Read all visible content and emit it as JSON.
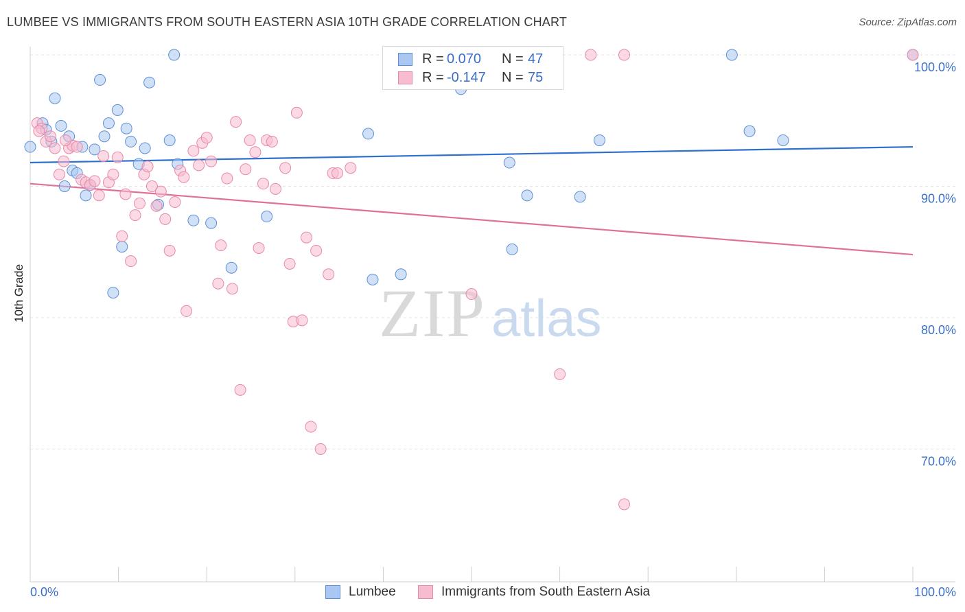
{
  "title": "LUMBEE VS IMMIGRANTS FROM SOUTH EASTERN ASIA 10TH GRADE CORRELATION CHART",
  "source": "Source: ZipAtlas.com",
  "watermark": {
    "zip": "ZIP",
    "atlas": "atlas"
  },
  "legend": {
    "r_label": "R =",
    "n_label": "N =",
    "rows": [
      {
        "r": "0.070",
        "n": "47",
        "color": "#a9c7f0",
        "stroke": "#5b8fd6"
      },
      {
        "r": "-0.147",
        "n": "75",
        "color": "#f7bcd0",
        "stroke": "#e888a8"
      }
    ]
  },
  "bottom_legend": [
    "Lumbee",
    "Immigrants from South Eastern Asia"
  ],
  "chart_data": {
    "type": "scatter",
    "title": "LUMBEE VS IMMIGRANTS FROM SOUTH EASTERN ASIA 10TH GRADE CORRELATION CHART",
    "xlabel": "",
    "ylabel": "10th Grade",
    "xlim": [
      0,
      100
    ],
    "ylim": [
      60,
      100
    ],
    "x_tick_labels": [
      "0.0%",
      "100.0%"
    ],
    "y_ticks": [
      70,
      80,
      90,
      100
    ],
    "y_tick_labels": [
      "70.0%",
      "80.0%",
      "90.0%",
      "100.0%"
    ],
    "grid": true,
    "colors": {
      "blue_fill": "#a9c7f0",
      "blue_stroke": "#5b8fd6",
      "blue_line": "#2f6fcf",
      "pink_fill": "#f7bcd0",
      "pink_stroke": "#e888a8",
      "pink_line": "#e0709a",
      "tick_label": "#3a6fc8"
    },
    "series": [
      {
        "name": "Lumbee",
        "trend": [
          [
            0,
            91.8
          ],
          [
            100,
            93.0
          ]
        ],
        "points": [
          [
            0,
            93.0
          ],
          [
            1.4,
            94.8
          ],
          [
            1.8,
            94.3
          ],
          [
            2.4,
            93.4
          ],
          [
            2.8,
            96.7
          ],
          [
            3.5,
            94.6
          ],
          [
            3.9,
            90.0
          ],
          [
            4.4,
            93.8
          ],
          [
            4.8,
            91.2
          ],
          [
            5.3,
            91.0
          ],
          [
            5.9,
            93.0
          ],
          [
            6.3,
            89.3
          ],
          [
            6.8,
            90.1
          ],
          [
            7.3,
            92.8
          ],
          [
            7.9,
            98.1
          ],
          [
            8.4,
            93.8
          ],
          [
            8.9,
            94.8
          ],
          [
            9.4,
            81.9
          ],
          [
            9.9,
            95.8
          ],
          [
            10.4,
            85.4
          ],
          [
            10.9,
            94.4
          ],
          [
            11.4,
            93.4
          ],
          [
            12.3,
            91.7
          ],
          [
            13.0,
            92.9
          ],
          [
            13.5,
            97.9
          ],
          [
            14.5,
            88.6
          ],
          [
            15.8,
            93.5
          ],
          [
            16.3,
            100.0
          ],
          [
            16.7,
            91.7
          ],
          [
            18.5,
            87.4
          ],
          [
            20.5,
            87.2
          ],
          [
            22.8,
            83.8
          ],
          [
            26.8,
            87.7
          ],
          [
            38.3,
            94.0
          ],
          [
            38.8,
            82.9
          ],
          [
            42.0,
            83.3
          ],
          [
            48.8,
            97.4
          ],
          [
            54.3,
            91.8
          ],
          [
            54.6,
            85.2
          ],
          [
            56.3,
            89.3
          ],
          [
            62.3,
            89.2
          ],
          [
            64.5,
            93.5
          ],
          [
            79.5,
            100.0
          ],
          [
            81.5,
            94.2
          ],
          [
            85.3,
            93.5
          ],
          [
            100.0,
            100.0
          ],
          [
            45.5,
            100.0
          ]
        ]
      },
      {
        "name": "Immigrants from South Eastern Asia",
        "trend": [
          [
            0,
            90.2
          ],
          [
            100,
            84.8
          ]
        ],
        "points": [
          [
            0.8,
            94.8
          ],
          [
            1.3,
            94.4
          ],
          [
            1.8,
            93.4
          ],
          [
            2.3,
            93.8
          ],
          [
            2.8,
            92.9
          ],
          [
            3.3,
            90.9
          ],
          [
            3.8,
            91.9
          ],
          [
            4.4,
            92.9
          ],
          [
            4.8,
            93.1
          ],
          [
            5.3,
            93.0
          ],
          [
            5.8,
            90.5
          ],
          [
            6.3,
            90.3
          ],
          [
            6.8,
            90.1
          ],
          [
            7.3,
            90.4
          ],
          [
            7.8,
            89.3
          ],
          [
            8.3,
            92.3
          ],
          [
            8.9,
            90.3
          ],
          [
            9.4,
            90.9
          ],
          [
            9.9,
            92.2
          ],
          [
            10.4,
            86.2
          ],
          [
            10.8,
            89.4
          ],
          [
            11.4,
            84.3
          ],
          [
            11.9,
            87.8
          ],
          [
            12.4,
            88.7
          ],
          [
            12.9,
            90.9
          ],
          [
            13.3,
            91.5
          ],
          [
            13.8,
            90.0
          ],
          [
            14.3,
            88.5
          ],
          [
            14.8,
            89.6
          ],
          [
            15.3,
            87.5
          ],
          [
            15.8,
            85.1
          ],
          [
            16.4,
            88.8
          ],
          [
            17.0,
            91.2
          ],
          [
            17.4,
            90.7
          ],
          [
            17.7,
            80.5
          ],
          [
            18.5,
            92.7
          ],
          [
            19.1,
            91.6
          ],
          [
            19.5,
            93.3
          ],
          [
            20.0,
            93.7
          ],
          [
            20.5,
            91.9
          ],
          [
            21.3,
            82.6
          ],
          [
            21.6,
            85.5
          ],
          [
            22.3,
            90.6
          ],
          [
            22.9,
            82.2
          ],
          [
            23.3,
            94.9
          ],
          [
            23.8,
            74.5
          ],
          [
            24.4,
            91.3
          ],
          [
            24.9,
            93.5
          ],
          [
            25.5,
            92.6
          ],
          [
            25.9,
            85.3
          ],
          [
            26.4,
            90.2
          ],
          [
            26.8,
            93.5
          ],
          [
            27.4,
            93.4
          ],
          [
            27.8,
            89.8
          ],
          [
            28.9,
            91.4
          ],
          [
            29.4,
            84.1
          ],
          [
            29.8,
            79.7
          ],
          [
            30.2,
            95.6
          ],
          [
            30.8,
            79.8
          ],
          [
            31.3,
            86.1
          ],
          [
            31.8,
            71.7
          ],
          [
            32.4,
            85.1
          ],
          [
            32.9,
            70.0
          ],
          [
            33.8,
            83.3
          ],
          [
            34.3,
            91.0
          ],
          [
            34.8,
            91.0
          ],
          [
            36.3,
            91.4
          ],
          [
            50.0,
            81.8
          ],
          [
            60.0,
            75.7
          ],
          [
            63.5,
            100.0
          ],
          [
            67.3,
            100.0
          ],
          [
            67.3,
            65.8
          ],
          [
            100.0,
            100.0
          ],
          [
            1.0,
            94.2
          ],
          [
            4.0,
            93.5
          ]
        ]
      }
    ]
  }
}
